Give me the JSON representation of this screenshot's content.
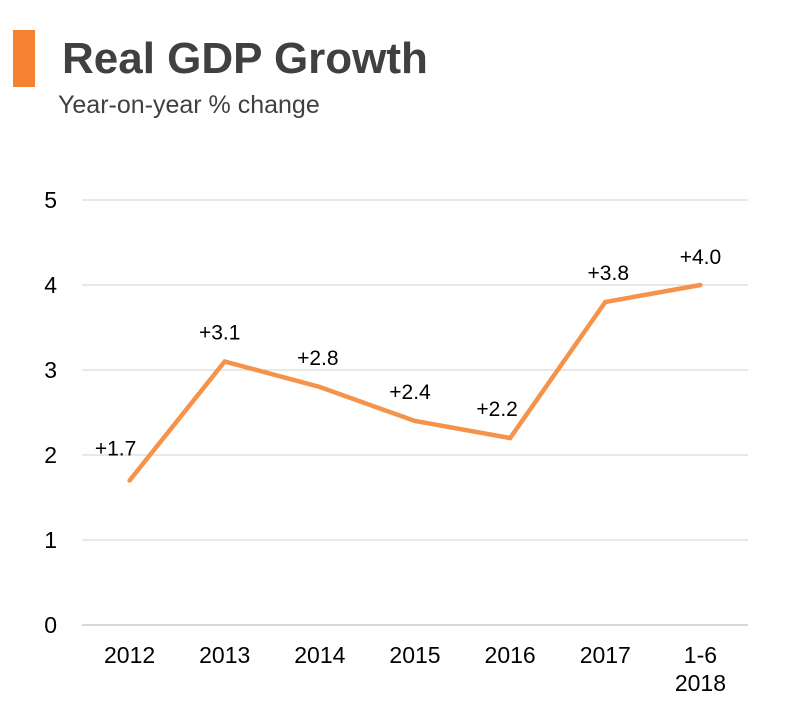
{
  "header": {
    "title": "Real GDP Growth",
    "subtitle": "Year-on-year % change"
  },
  "colors": {
    "accent": "#F58230",
    "line": "#F5934A",
    "grid": "#D9D9D9",
    "text": "#404040"
  },
  "chart_data": {
    "type": "line",
    "title": "Real GDP Growth",
    "subtitle": "Year-on-year % change",
    "xlabel": "",
    "ylabel": "",
    "categories": [
      [
        "2012"
      ],
      [
        "2013"
      ],
      [
        "2014"
      ],
      [
        "2015"
      ],
      [
        "2016"
      ],
      [
        "2017"
      ],
      [
        "1-6",
        "2018"
      ]
    ],
    "series": [
      {
        "name": "Real GDP Growth",
        "values": [
          1.7,
          3.1,
          2.8,
          2.4,
          2.2,
          3.8,
          4.0
        ]
      }
    ],
    "data_labels": [
      "+1.7",
      "+3.1",
      "+2.8",
      "+2.4",
      "+2.2",
      "+3.8",
      "+4.0"
    ],
    "ylim": [
      0,
      5
    ],
    "yticks": [
      "0",
      "1",
      "2",
      "3",
      "4",
      "5"
    ],
    "grid": true,
    "legend": "none"
  }
}
